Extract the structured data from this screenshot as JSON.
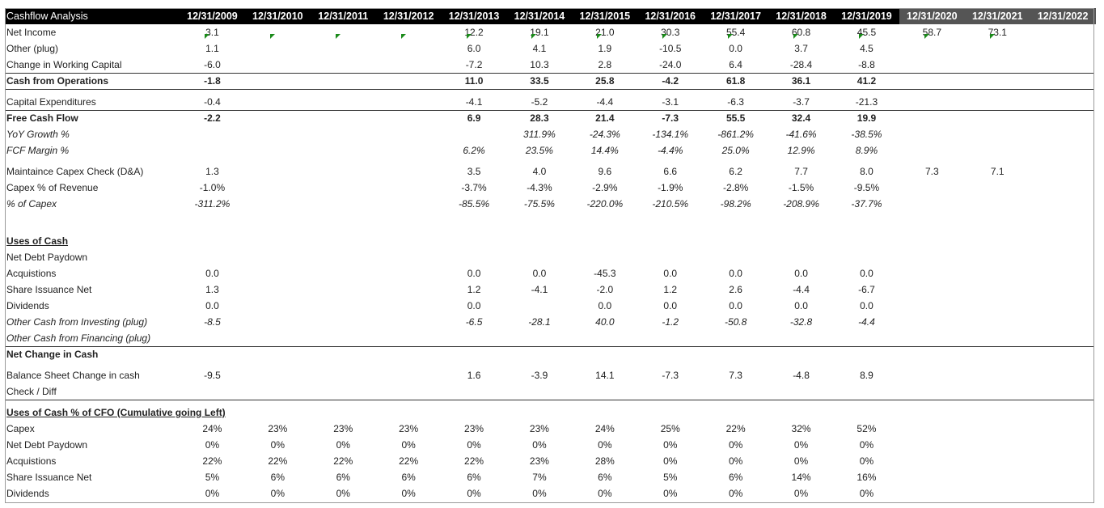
{
  "sheet": {
    "title": "Cashflow Analysis",
    "years": [
      "12/31/2009",
      "12/31/2010",
      "12/31/2011",
      "12/31/2012",
      "12/31/2013",
      "12/31/2014",
      "12/31/2015",
      "12/31/2016",
      "12/31/2017",
      "12/31/2018",
      "12/31/2019",
      "12/31/2020",
      "12/31/2021",
      "12/31/2022"
    ],
    "header_colors": {
      "historical": "#000000",
      "forecast": "#555555",
      "text": "#ffffff"
    },
    "rows": [
      {
        "label": "Net Income",
        "values": [
          "3.1",
          "",
          "",
          "",
          "12.2",
          "19.1",
          "21.0",
          "30.3",
          "55.4",
          "60.8",
          "45.5",
          "58.7",
          "73.1",
          ""
        ]
      },
      {
        "label": "Other (plug)",
        "values": [
          "1.1",
          "",
          "",
          "",
          "6.0",
          "4.1",
          "1.9",
          "-10.5",
          "0.0",
          "3.7",
          "4.5",
          "",
          "",
          ""
        ],
        "markers": [
          0,
          1,
          2,
          3,
          4,
          5,
          6,
          7,
          8,
          9,
          10,
          11,
          12
        ]
      },
      {
        "label": "Change in Working Capital",
        "values": [
          "-6.0",
          "",
          "",
          "",
          "-7.2",
          "10.3",
          "2.8",
          "-24.0",
          "6.4",
          "-28.4",
          "-8.8",
          "",
          "",
          ""
        ]
      },
      {
        "label": "Cash from Operations",
        "values": [
          "-1.8",
          "",
          "",
          "",
          "11.0",
          "33.5",
          "25.8",
          "-4.2",
          "61.8",
          "36.1",
          "41.2",
          "",
          "",
          ""
        ],
        "bold": true
      },
      {
        "label": "Capital Expenditures",
        "values": [
          "-0.4",
          "",
          "",
          "",
          "-4.1",
          "-5.2",
          "-4.4",
          "-3.1",
          "-6.3",
          "-3.7",
          "-21.3",
          "",
          "",
          ""
        ]
      },
      {
        "label": "Free Cash Flow",
        "values": [
          "-2.2",
          "",
          "",
          "",
          "6.9",
          "28.3",
          "21.4",
          "-7.3",
          "55.5",
          "32.4",
          "19.9",
          "",
          "",
          ""
        ],
        "bold": true
      },
      {
        "label": "YoY Growth %",
        "values": [
          "",
          "",
          "",
          "",
          "",
          "311.9%",
          "-24.3%",
          "-134.1%",
          "-861.2%",
          "-41.6%",
          "-38.5%",
          "",
          "",
          ""
        ],
        "italic": true
      },
      {
        "label": "FCF Margin %",
        "values": [
          "",
          "",
          "",
          "",
          "6.2%",
          "23.5%",
          "14.4%",
          "-4.4%",
          "25.0%",
          "12.9%",
          "8.9%",
          "",
          "",
          ""
        ],
        "italic": true
      },
      {
        "label": "Maintaince Capex Check (D&A)",
        "values": [
          "1.3",
          "",
          "",
          "",
          "3.5",
          "4.0",
          "9.6",
          "6.6",
          "6.2",
          "7.7",
          "8.0",
          "7.3",
          "7.1",
          ""
        ]
      },
      {
        "label": "Capex % of Revenue",
        "values": [
          "-1.0%",
          "",
          "",
          "",
          "-3.7%",
          "-4.3%",
          "-2.9%",
          "-1.9%",
          "-2.8%",
          "-1.5%",
          "-9.5%",
          "",
          "",
          ""
        ]
      },
      {
        "label": "% of Capex",
        "values": [
          "-311.2%",
          "",
          "",
          "",
          "-85.5%",
          "-75.5%",
          "-220.0%",
          "-210.5%",
          "-98.2%",
          "-208.9%",
          "-37.7%",
          "",
          "",
          ""
        ],
        "italic": true
      },
      {
        "label": "Uses of Cash",
        "values": [],
        "section": true
      },
      {
        "label": "Net Debt Paydown",
        "values": []
      },
      {
        "label": "Acquistions",
        "values": [
          "0.0",
          "",
          "",
          "",
          "0.0",
          "0.0",
          "-45.3",
          "0.0",
          "0.0",
          "0.0",
          "0.0",
          "",
          "",
          ""
        ]
      },
      {
        "label": "Share Issuance Net",
        "values": [
          "1.3",
          "",
          "",
          "",
          "1.2",
          "-4.1",
          "-2.0",
          "1.2",
          "2.6",
          "-4.4",
          "-6.7",
          "",
          "",
          ""
        ]
      },
      {
        "label": "Dividends",
        "values": [
          "0.0",
          "",
          "",
          "",
          "0.0",
          "",
          "0.0",
          "0.0",
          "0.0",
          "0.0",
          "0.0",
          "",
          "",
          ""
        ]
      },
      {
        "label": "Other Cash from Investing (plug)",
        "values": [
          "-8.5",
          "",
          "",
          "",
          "-6.5",
          "-28.1",
          "40.0",
          "-1.2",
          "-50.8",
          "-32.8",
          "-4.4",
          "",
          "",
          ""
        ],
        "italic": true
      },
      {
        "label": "Other Cash from Financing (plug)",
        "values": [],
        "italic": true
      },
      {
        "label": "Net Change in Cash",
        "values": [],
        "bold": true
      },
      {
        "label": "Balance Sheet Change in cash",
        "values": [
          "-9.5",
          "",
          "",
          "",
          "1.6",
          "-3.9",
          "14.1",
          "-7.3",
          "7.3",
          "-4.8",
          "8.9",
          "",
          "",
          ""
        ]
      },
      {
        "label": "Check  / Diff",
        "values": []
      },
      {
        "label": "Uses of Cash % of CFO (Cumulative going Left)",
        "values": [],
        "section": true
      },
      {
        "label": "Capex",
        "values": [
          "24%",
          "23%",
          "23%",
          "23%",
          "23%",
          "23%",
          "24%",
          "25%",
          "22%",
          "32%",
          "52%",
          "",
          "",
          ""
        ]
      },
      {
        "label": "Net Debt Paydown",
        "values": [
          "0%",
          "0%",
          "0%",
          "0%",
          "0%",
          "0%",
          "0%",
          "0%",
          "0%",
          "0%",
          "0%",
          "",
          "",
          ""
        ]
      },
      {
        "label": "Acquistions",
        "values": [
          "22%",
          "22%",
          "22%",
          "22%",
          "22%",
          "23%",
          "28%",
          "0%",
          "0%",
          "0%",
          "0%",
          "",
          "",
          ""
        ]
      },
      {
        "label": "Share Issuance Net",
        "values": [
          "5%",
          "6%",
          "6%",
          "6%",
          "6%",
          "7%",
          "6%",
          "5%",
          "6%",
          "14%",
          "16%",
          "",
          "",
          ""
        ]
      },
      {
        "label": "Dividends",
        "values": [
          "0%",
          "0%",
          "0%",
          "0%",
          "0%",
          "0%",
          "0%",
          "0%",
          "0%",
          "0%",
          "0%",
          "",
          "",
          ""
        ]
      }
    ]
  }
}
